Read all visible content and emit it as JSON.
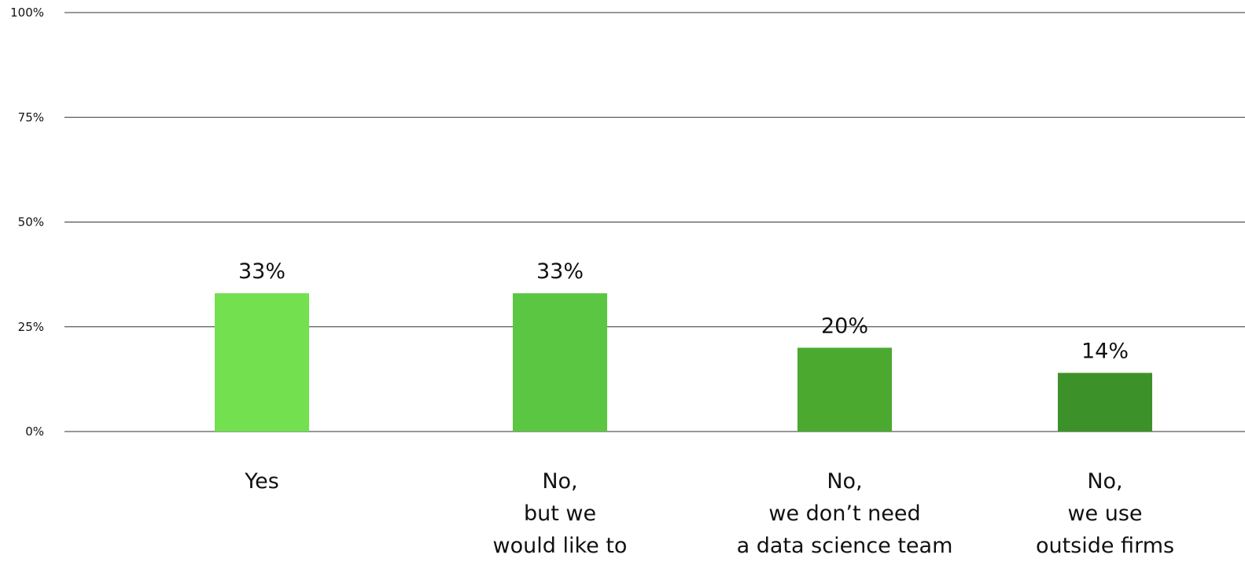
{
  "chart_data": {
    "type": "bar",
    "categories": [
      [
        "Yes"
      ],
      [
        "No,",
        "but we",
        "would like to"
      ],
      [
        "No,",
        "we don’t need",
        "a data science team"
      ],
      [
        "No,",
        "we use",
        "outside firms"
      ]
    ],
    "values": [
      33,
      33,
      20,
      14
    ],
    "value_labels": [
      "33%",
      "33%",
      "20%",
      "14%"
    ],
    "colors": [
      "#72e04f",
      "#5bc642",
      "#4ba930",
      "#3d9129"
    ],
    "title": "",
    "xlabel": "",
    "ylabel": "",
    "ylim": [
      0,
      100
    ],
    "yticks": [
      {
        "value": 0,
        "label": "0%"
      },
      {
        "value": 25,
        "label": "25%"
      },
      {
        "value": 50,
        "label": "50%"
      },
      {
        "value": 75,
        "label": "75%"
      },
      {
        "value": 100,
        "label": "100%"
      }
    ],
    "grid": true,
    "legend": "none"
  }
}
